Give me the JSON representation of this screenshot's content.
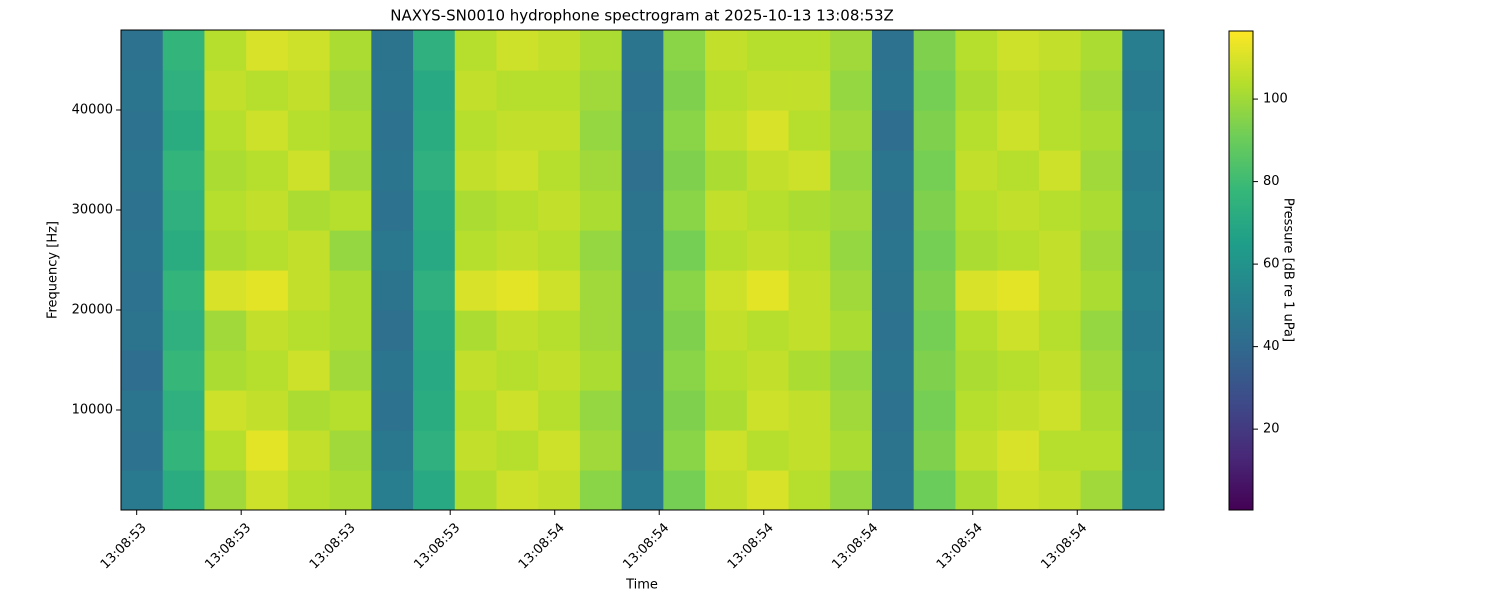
{
  "chart_data": {
    "type": "heatmap",
    "title": "NAXYS-SN0010 hydrophone spectrogram at 2025-10-13 13:08:53Z",
    "x_label": "Time",
    "y_label": "Frequency [Hz]",
    "colorbar_label": "Pressure [dB re 1 uPa]",
    "colormap": "viridis",
    "xlim": [
      53.585,
      54.583
    ],
    "xticks": [
      {
        "value": 53.6,
        "label": "13:08:53"
      },
      {
        "value": 53.7,
        "label": "13:08:53"
      },
      {
        "value": 53.8,
        "label": "13:08:53"
      },
      {
        "value": 53.9,
        "label": "13:08:53"
      },
      {
        "value": 54.0,
        "label": "13:08:54"
      },
      {
        "value": 54.1,
        "label": "13:08:54"
      },
      {
        "value": 54.2,
        "label": "13:08:54"
      },
      {
        "value": 54.3,
        "label": "13:08:54"
      },
      {
        "value": 54.4,
        "label": "13:08:54"
      },
      {
        "value": 54.5,
        "label": "13:08:54"
      }
    ],
    "ylim": [
      0,
      48000
    ],
    "yticks": [
      10000,
      20000,
      30000,
      40000
    ],
    "clim": [
      0.4,
      116.5
    ],
    "cticks": [
      20,
      40,
      60,
      80,
      100
    ],
    "z": [
      [
        48,
        72,
        100,
        108,
        104,
        102,
        50,
        70,
        103,
        108,
        106,
        96,
        48,
        92,
        106,
        110,
        104,
        98,
        46,
        90,
        102,
        108,
        106,
        100,
        52
      ],
      [
        44,
        76,
        104,
        112,
        106,
        100,
        47,
        74,
        106,
        104,
        108,
        100,
        44,
        96,
        108,
        104,
        106,
        102,
        45,
        94,
        106,
        110,
        104,
        104,
        50
      ],
      [
        46,
        74,
        108,
        106,
        102,
        104,
        44,
        72,
        104,
        108,
        104,
        98,
        46,
        94,
        102,
        108,
        106,
        100,
        44,
        92,
        104,
        106,
        108,
        102,
        48
      ],
      [
        42,
        78,
        102,
        104,
        108,
        100,
        46,
        70,
        106,
        104,
        106,
        102,
        44,
        96,
        104,
        106,
        102,
        98,
        46,
        94,
        102,
        104,
        106,
        100,
        50
      ],
      [
        45,
        74,
        100,
        106,
        104,
        102,
        43,
        72,
        102,
        106,
        104,
        100,
        46,
        94,
        106,
        104,
        106,
        102,
        44,
        92,
        104,
        108,
        104,
        98,
        48
      ],
      [
        44,
        76,
        110,
        112,
        106,
        102,
        45,
        74,
        110,
        112,
        108,
        100,
        44,
        96,
        108,
        112,
        106,
        100,
        45,
        94,
        110,
        112,
        106,
        102,
        50
      ],
      [
        46,
        72,
        102,
        104,
        106,
        98,
        47,
        70,
        104,
        106,
        104,
        98,
        46,
        92,
        104,
        106,
        104,
        98,
        46,
        92,
        102,
        104,
        106,
        100,
        48
      ],
      [
        44,
        74,
        104,
        106,
        102,
        104,
        44,
        72,
        102,
        104,
        106,
        102,
        45,
        96,
        106,
        104,
        102,
        100,
        44,
        94,
        104,
        106,
        104,
        102,
        50
      ],
      [
        46,
        76,
        102,
        104,
        108,
        100,
        46,
        74,
        106,
        108,
        104,
        100,
        43,
        94,
        102,
        106,
        108,
        98,
        46,
        92,
        106,
        104,
        108,
        100,
        48
      ],
      [
        44,
        72,
        104,
        108,
        104,
        102,
        44,
        72,
        104,
        106,
        106,
        98,
        45,
        96,
        106,
        110,
        104,
        100,
        42,
        94,
        104,
        108,
        104,
        102,
        50
      ],
      [
        46,
        74,
        106,
        104,
        106,
        100,
        46,
        70,
        106,
        104,
        104,
        100,
        44,
        94,
        104,
        106,
        106,
        98,
        46,
        92,
        102,
        106,
        104,
        100,
        48
      ],
      [
        44,
        76,
        104,
        110,
        108,
        102,
        45,
        74,
        104,
        108,
        106,
        102,
        46,
        96,
        106,
        104,
        104,
        100,
        44,
        94,
        104,
        108,
        106,
        102,
        50
      ]
    ]
  }
}
